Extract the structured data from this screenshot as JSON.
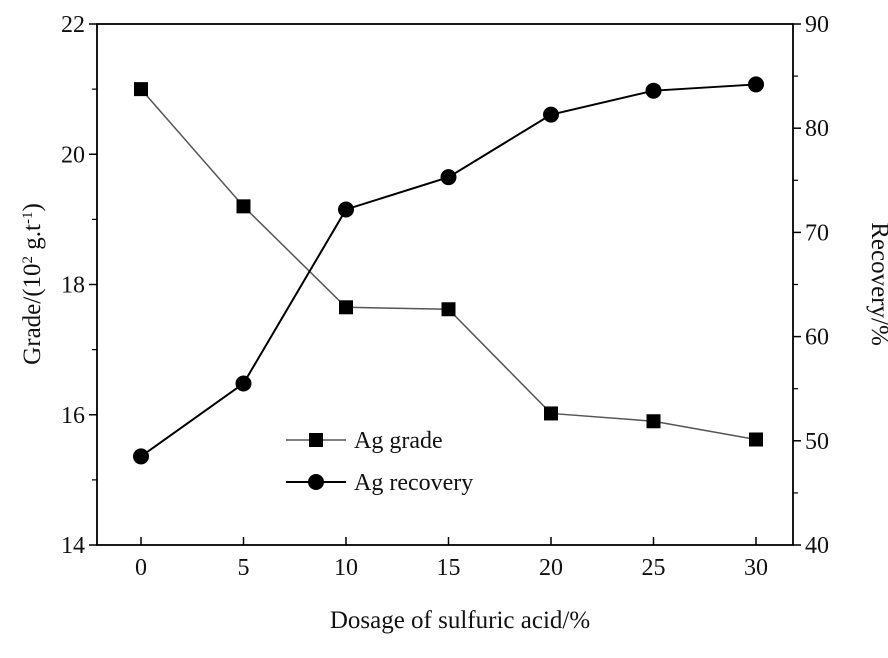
{
  "chart_data": {
    "type": "line",
    "x": [
      0,
      5,
      10,
      15,
      20,
      25,
      30
    ],
    "xlabel": "Dosage of sulfuric acid/%",
    "ylabel_left": "Grade/(10",
    "ylabel_left_sup1": "2",
    "ylabel_left_mid": " g.t",
    "ylabel_left_sup2": "-1",
    "ylabel_left_end": ")",
    "ylabel_right": "Recovery/%",
    "xlim": [
      -3,
      33
    ],
    "ylim_left": [
      14,
      22
    ],
    "ylim_right": [
      40,
      90
    ],
    "xticks": [
      "0",
      "5",
      "10",
      "15",
      "20",
      "25",
      "30"
    ],
    "yticks_left": [
      "14",
      "16",
      "18",
      "20",
      "22"
    ],
    "yticks_right": [
      "40",
      "50",
      "60",
      "70",
      "80",
      "90"
    ],
    "grid": false,
    "legend_position": "lower-left",
    "series": [
      {
        "name": "Ag grade",
        "axis": "left",
        "marker": "square",
        "line_color": "#555555",
        "values": [
          21.0,
          19.2,
          17.65,
          17.62,
          16.02,
          15.9,
          15.62
        ]
      },
      {
        "name": "Ag recovery",
        "axis": "right",
        "marker": "circle",
        "line_color": "#000000",
        "values": [
          48.5,
          55.5,
          72.2,
          75.3,
          81.3,
          83.6,
          84.2
        ]
      }
    ]
  }
}
